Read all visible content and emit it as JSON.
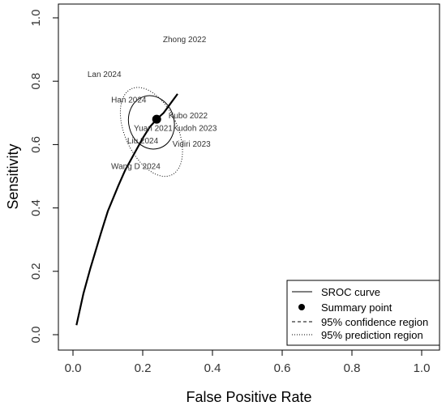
{
  "chart_data": {
    "type": "scatter",
    "title": "",
    "xlabel": "False Positive Rate",
    "ylabel": "Sensitivity",
    "xlim": [
      0,
      1
    ],
    "ylim": [
      0,
      1
    ],
    "xticks": [
      "0.0",
      "0.2",
      "0.4",
      "0.6",
      "0.8",
      "1.0"
    ],
    "yticks": [
      "0.0",
      "0.2",
      "0.4",
      "0.6",
      "0.8",
      "1.0"
    ],
    "grid": false,
    "legend_position": "bottom-right",
    "legend": [
      {
        "label": "SROC curve",
        "style": "solid-line"
      },
      {
        "label": "Summary point",
        "style": "filled-circle"
      },
      {
        "label": "95% confidence region",
        "style": "dashed-line"
      },
      {
        "label": "95% prediction region",
        "style": "dotted-line"
      }
    ],
    "studies": [
      {
        "label": "Zhong 2022",
        "fpr": 0.32,
        "sens": 0.93
      },
      {
        "label": "Lan 2024",
        "fpr": 0.09,
        "sens": 0.82
      },
      {
        "label": "Han 2024",
        "fpr": 0.16,
        "sens": 0.74
      },
      {
        "label": "Kubo 2022",
        "fpr": 0.33,
        "sens": 0.69
      },
      {
        "label": "Yuan 2021",
        "fpr": 0.23,
        "sens": 0.65
      },
      {
        "label": "Kudoh 2023",
        "fpr": 0.35,
        "sens": 0.65
      },
      {
        "label": "Liu 2024",
        "fpr": 0.2,
        "sens": 0.61
      },
      {
        "label": "Vidiri 2023",
        "fpr": 0.34,
        "sens": 0.6
      },
      {
        "label": "Wang D 2024",
        "fpr": 0.18,
        "sens": 0.53
      }
    ],
    "summary_point": {
      "fpr": 0.24,
      "sens": 0.68
    },
    "sroc_curve": {
      "fpr": [
        0.01,
        0.03,
        0.05,
        0.08,
        0.1,
        0.13,
        0.15,
        0.18,
        0.2,
        0.22,
        0.24,
        0.26,
        0.28,
        0.3
      ],
      "sens": [
        0.03,
        0.13,
        0.21,
        0.32,
        0.39,
        0.47,
        0.52,
        0.58,
        0.62,
        0.655,
        0.68,
        0.7,
        0.73,
        0.76
      ]
    },
    "confidence_region": {
      "center_fpr": 0.225,
      "center_sens": 0.67,
      "rx": 0.065,
      "ry": 0.085,
      "rotation_deg": -15
    },
    "prediction_region": {
      "center_fpr": 0.225,
      "center_sens": 0.64,
      "rx": 0.075,
      "ry": 0.15,
      "rotation_deg": -25
    }
  }
}
